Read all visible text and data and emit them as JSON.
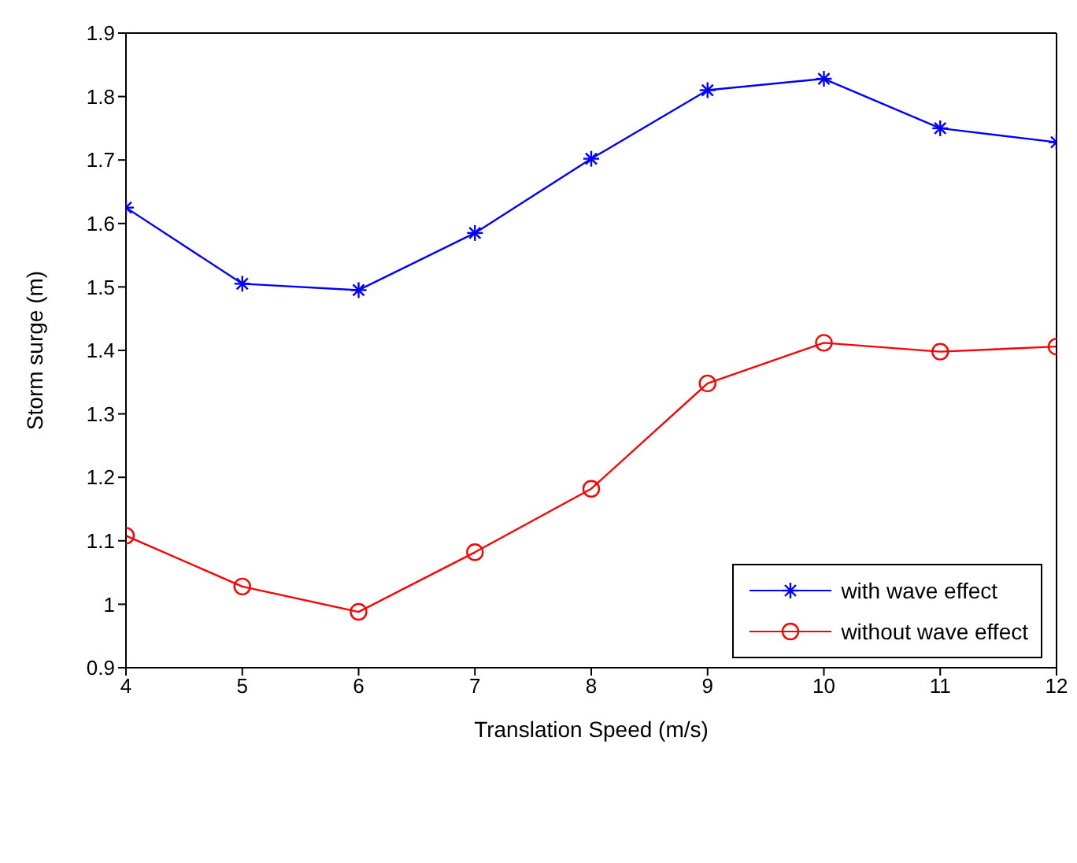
{
  "chart_data": {
    "type": "line",
    "xlabel": "Translation Speed (m/s)",
    "ylabel": "Storm surge (m)",
    "x": [
      4,
      5,
      6,
      7,
      8,
      9,
      10,
      11,
      12
    ],
    "series": [
      {
        "name": "with wave effect",
        "color": "#0000ff",
        "marker": "cross",
        "values": [
          1.625,
          1.505,
          1.495,
          1.585,
          1.702,
          1.81,
          1.828,
          1.75,
          1.728
        ]
      },
      {
        "name": "without wave effect",
        "color": "#ff0000",
        "marker": "circle",
        "values": [
          1.108,
          1.028,
          0.988,
          1.082,
          1.182,
          1.348,
          1.412,
          1.398,
          1.406
        ]
      }
    ],
    "xlim": [
      4,
      12
    ],
    "xticks": [
      4,
      5,
      6,
      7,
      8,
      9,
      10,
      11,
      12
    ],
    "ylim": [
      0.9,
      1.9
    ],
    "yticks": [
      0.9,
      1,
      1.1,
      1.2,
      1.3,
      1.4,
      1.5,
      1.6,
      1.7,
      1.8,
      1.9
    ],
    "grid": false,
    "legend": "bottom right",
    "line_style": "solid"
  }
}
